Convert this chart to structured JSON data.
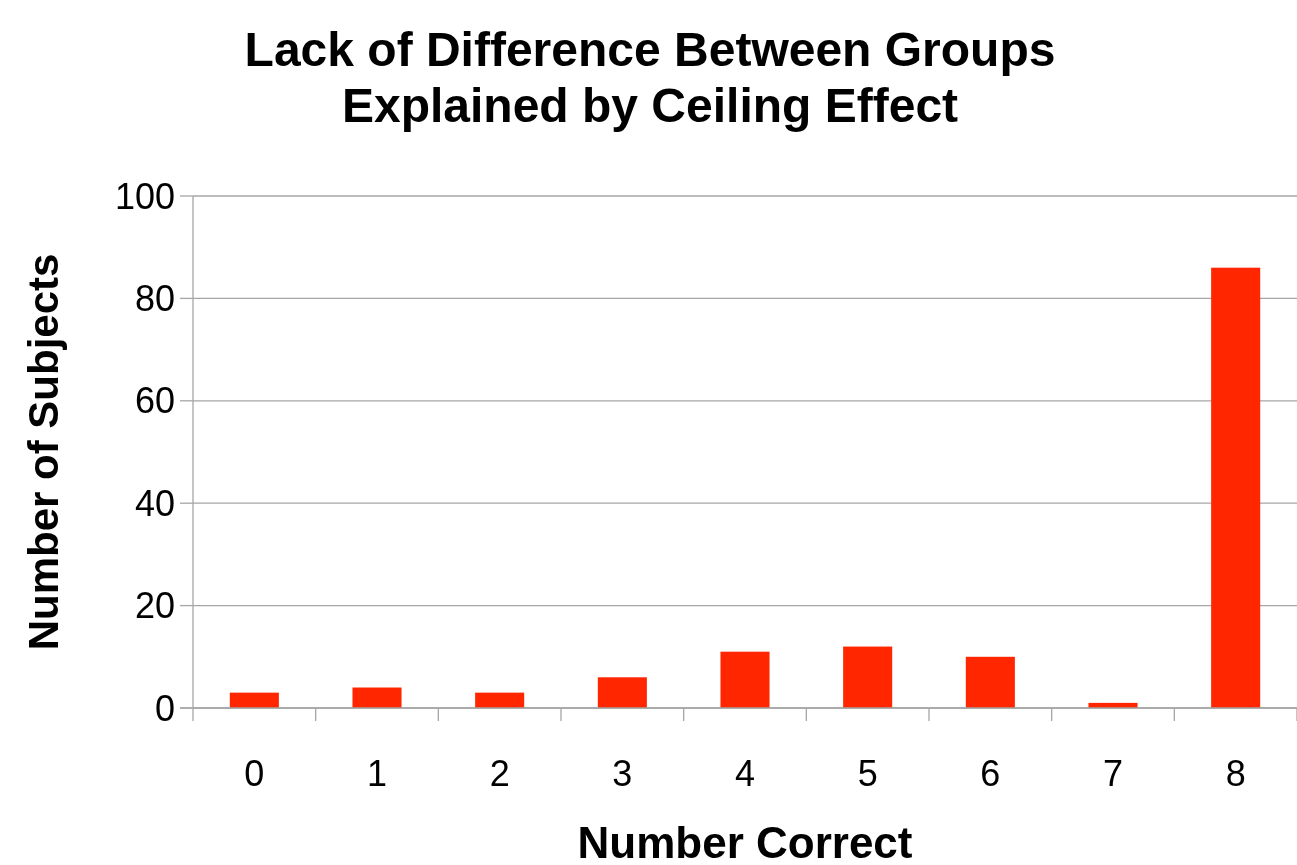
{
  "chart_data": {
    "type": "bar",
    "title": "Lack of Difference Between Groups\nExplained by Ceiling Effect",
    "xlabel": "Number Correct",
    "ylabel": "Number of Subjects",
    "categories": [
      "0",
      "1",
      "2",
      "3",
      "4",
      "5",
      "6",
      "7",
      "8"
    ],
    "values": [
      3,
      4,
      3,
      6,
      11,
      12,
      10,
      1,
      86
    ],
    "color": "#ff2600",
    "ylim": [
      0,
      100
    ],
    "yticks": [
      0,
      20,
      40,
      60,
      80,
      100
    ],
    "grid": "y"
  }
}
